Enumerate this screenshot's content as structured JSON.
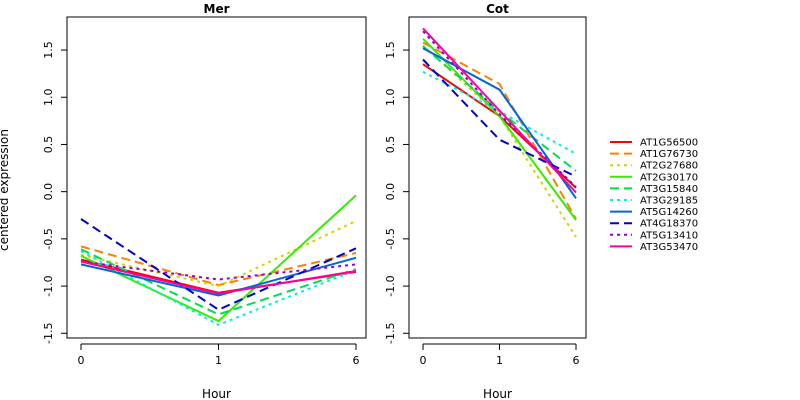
{
  "chart_data": {
    "type": "line",
    "ylabel": "centered expression",
    "xlabel": "Hour",
    "x_ticks": [
      "0",
      "1",
      "6"
    ],
    "ylim": [
      -1.55,
      1.85
    ],
    "y_ticks": [
      -1.5,
      -1.0,
      -0.5,
      0.0,
      0.5,
      1.0,
      1.5
    ],
    "y_tick_labels": [
      "-1.5",
      "-1.0",
      "-0.5",
      "0.0",
      "0.5",
      "1.0",
      "1.5"
    ],
    "panels": [
      {
        "title": "Mer",
        "series": [
          {
            "name": "AT1G56500",
            "color": "#ff0000",
            "dash": "solid",
            "values": [
              -0.72,
              -1.07,
              -0.85
            ]
          },
          {
            "name": "AT1G76730",
            "color": "#ff8000",
            "dash": "dashed",
            "values": [
              -0.58,
              -0.99,
              -0.65
            ]
          },
          {
            "name": "AT2G27680",
            "color": "#d4d400",
            "dash": "dotted",
            "values": [
              -0.67,
              -1.0,
              -0.31
            ]
          },
          {
            "name": "AT2G30170",
            "color": "#33ee00",
            "dash": "solid",
            "values": [
              -0.68,
              -1.37,
              -0.04
            ]
          },
          {
            "name": "AT3G15840",
            "color": "#00dd55",
            "dash": "dashed",
            "values": [
              -0.61,
              -1.3,
              -0.82
            ]
          },
          {
            "name": "AT3G29185",
            "color": "#00eeee",
            "dash": "dotted",
            "values": [
              -0.63,
              -1.41,
              -0.83
            ]
          },
          {
            "name": "AT5G14260",
            "color": "#0066dd",
            "dash": "solid",
            "values": [
              -0.77,
              -1.1,
              -0.7
            ]
          },
          {
            "name": "AT4G18370",
            "color": "#0000cc",
            "dash": "dashed",
            "values": [
              -0.29,
              -1.25,
              -0.6
            ]
          },
          {
            "name": "AT5G13410",
            "color": "#9900cc",
            "dash": "dotted",
            "values": [
              -0.74,
              -0.93,
              -0.77
            ]
          },
          {
            "name": "AT3G53470",
            "color": "#ff0099",
            "dash": "solid",
            "values": [
              -0.74,
              -1.08,
              -0.84
            ]
          }
        ]
      },
      {
        "title": "Cot",
        "series": [
          {
            "name": "AT1G56500",
            "color": "#ff0000",
            "dash": "solid",
            "values": [
              1.35,
              0.8,
              0.04
            ]
          },
          {
            "name": "AT1G76730",
            "color": "#ff8000",
            "dash": "dashed",
            "values": [
              1.58,
              1.14,
              -0.29
            ]
          },
          {
            "name": "AT2G27680",
            "color": "#d4d400",
            "dash": "dotted",
            "values": [
              1.55,
              0.8,
              -0.48
            ]
          },
          {
            "name": "AT2G30170",
            "color": "#33ee00",
            "dash": "solid",
            "values": [
              1.62,
              0.8,
              -0.3
            ]
          },
          {
            "name": "AT3G15840",
            "color": "#00dd55",
            "dash": "dashed",
            "values": [
              1.54,
              0.85,
              0.22
            ]
          },
          {
            "name": "AT3G29185",
            "color": "#00eeee",
            "dash": "dotted",
            "values": [
              1.27,
              0.85,
              0.4
            ]
          },
          {
            "name": "AT5G14260",
            "color": "#0066dd",
            "dash": "solid",
            "values": [
              1.52,
              1.08,
              -0.07
            ]
          },
          {
            "name": "AT4G18370",
            "color": "#0000cc",
            "dash": "dashed",
            "values": [
              1.4,
              0.55,
              0.16
            ]
          },
          {
            "name": "AT5G13410",
            "color": "#9900cc",
            "dash": "dotted",
            "values": [
              1.7,
              0.82,
              0.05
            ]
          },
          {
            "name": "AT3G53470",
            "color": "#ff0099",
            "dash": "solid",
            "values": [
              1.73,
              0.86,
              -0.01
            ]
          }
        ]
      }
    ],
    "legend_position": "right"
  }
}
